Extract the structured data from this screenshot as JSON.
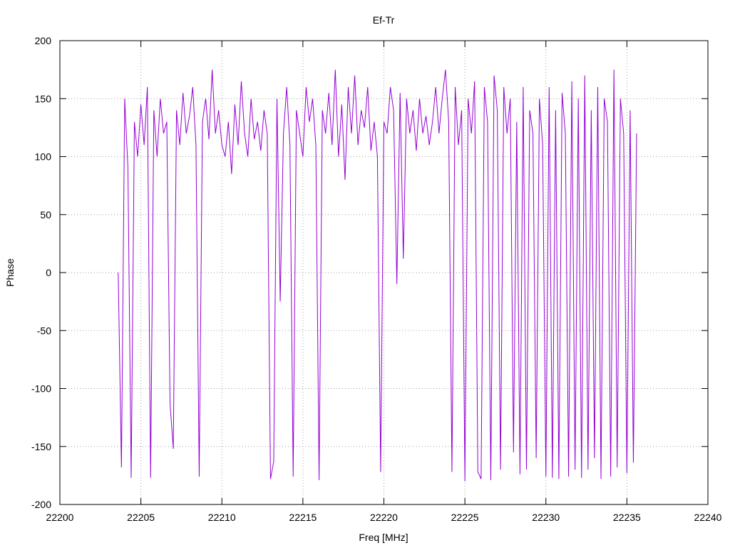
{
  "chart_data": {
    "type": "line",
    "title": "Ef-Tr",
    "x_label": "Freq [MHz]",
    "y_label": "Phase",
    "color": "#9400d3",
    "grid": true,
    "xlim": [
      22200,
      22240
    ],
    "xticks": [
      22200,
      22205,
      22210,
      22215,
      22220,
      22225,
      22230,
      22235,
      22240
    ],
    "ylim": [
      -200,
      200
    ],
    "yticks": [
      -200,
      -150,
      -100,
      -50,
      0,
      50,
      100,
      150,
      200
    ],
    "x": [
      22203.6,
      22203.8,
      22204.0,
      22204.2,
      22204.4,
      22204.6,
      22204.8,
      22205.0,
      22205.2,
      22205.4,
      22205.6,
      22205.8,
      22206.0,
      22206.2,
      22206.4,
      22206.6,
      22206.8,
      22207.0,
      22207.2,
      22207.4,
      22207.6,
      22207.8,
      22208.0,
      22208.2,
      22208.4,
      22208.6,
      22208.8,
      22209.0,
      22209.2,
      22209.4,
      22209.6,
      22209.8,
      22210.0,
      22210.2,
      22210.4,
      22210.6,
      22210.8,
      22211.0,
      22211.2,
      22211.4,
      22211.6,
      22211.8,
      22212.0,
      22212.2,
      22212.4,
      22212.6,
      22212.8,
      22213.0,
      22213.2,
      22213.4,
      22213.6,
      22213.8,
      22214.0,
      22214.2,
      22214.4,
      22214.6,
      22214.8,
      22215.0,
      22215.2,
      22215.4,
      22215.6,
      22215.8,
      22216.0,
      22216.2,
      22216.4,
      22216.6,
      22216.8,
      22217.0,
      22217.2,
      22217.4,
      22217.6,
      22217.8,
      22218.0,
      22218.2,
      22218.4,
      22218.6,
      22218.8,
      22219.0,
      22219.2,
      22219.4,
      22219.6,
      22219.8,
      22220.0,
      22220.2,
      22220.4,
      22220.6,
      22220.8,
      22221.0,
      22221.2,
      22221.4,
      22221.6,
      22221.8,
      22222.0,
      22222.2,
      22222.4,
      22222.6,
      22222.8,
      22223.0,
      22223.2,
      22223.4,
      22223.6,
      22223.8,
      22224.0,
      22224.2,
      22224.4,
      22224.6,
      22224.8,
      22225.0,
      22225.2,
      22225.4,
      22225.6,
      22225.8,
      22226.0,
      22226.2,
      22226.4,
      22226.6,
      22226.8,
      22227.0,
      22227.2,
      22227.4,
      22227.6,
      22227.8,
      22228.0,
      22228.2,
      22228.4,
      22228.6,
      22228.8,
      22229.0,
      22229.2,
      22229.4,
      22229.6,
      22229.8,
      22230.0,
      22230.2,
      22230.4,
      22230.6,
      22230.8,
      22231.0,
      22231.2,
      22231.4,
      22231.6,
      22231.8,
      22232.0,
      22232.2,
      22232.4,
      22232.6,
      22232.8,
      22233.0,
      22233.2,
      22233.4,
      22233.6,
      22233.8,
      22234.0,
      22234.2,
      22234.4,
      22234.6,
      22234.8,
      22235.0,
      22235.2,
      22235.4,
      22235.6
    ],
    "values": [
      0,
      -168,
      150,
      90,
      -177,
      130,
      100,
      145,
      110,
      160,
      -177,
      140,
      100,
      150,
      120,
      130,
      -113,
      -152,
      140,
      110,
      155,
      120,
      135,
      160,
      110,
      -176,
      130,
      150,
      115,
      175,
      120,
      140,
      110,
      100,
      130,
      85,
      145,
      110,
      165,
      120,
      100,
      150,
      115,
      130,
      105,
      140,
      120,
      -178,
      -163,
      150,
      -25,
      120,
      160,
      110,
      -176,
      140,
      120,
      100,
      160,
      130,
      150,
      110,
      -179,
      140,
      120,
      155,
      110,
      175,
      100,
      145,
      80,
      160,
      120,
      170,
      110,
      140,
      125,
      160,
      105,
      130,
      100,
      -172,
      130,
      120,
      160,
      140,
      -10,
      155,
      12,
      150,
      120,
      140,
      105,
      150,
      120,
      135,
      110,
      130,
      160,
      120,
      150,
      175,
      130,
      -172,
      160,
      110,
      140,
      -180,
      150,
      120,
      165,
      -172,
      -178,
      160,
      130,
      -179,
      170,
      140,
      -170,
      160,
      120,
      150,
      -155,
      130,
      -174,
      160,
      -170,
      140,
      120,
      -160,
      150,
      110,
      -176,
      160,
      -177,
      140,
      -178,
      155,
      120,
      -176,
      165,
      -170,
      150,
      -177,
      170,
      -170,
      140,
      -160,
      160,
      -178,
      150,
      130,
      -176,
      175,
      -168,
      150,
      120,
      -173,
      140,
      -164,
      120
    ]
  }
}
